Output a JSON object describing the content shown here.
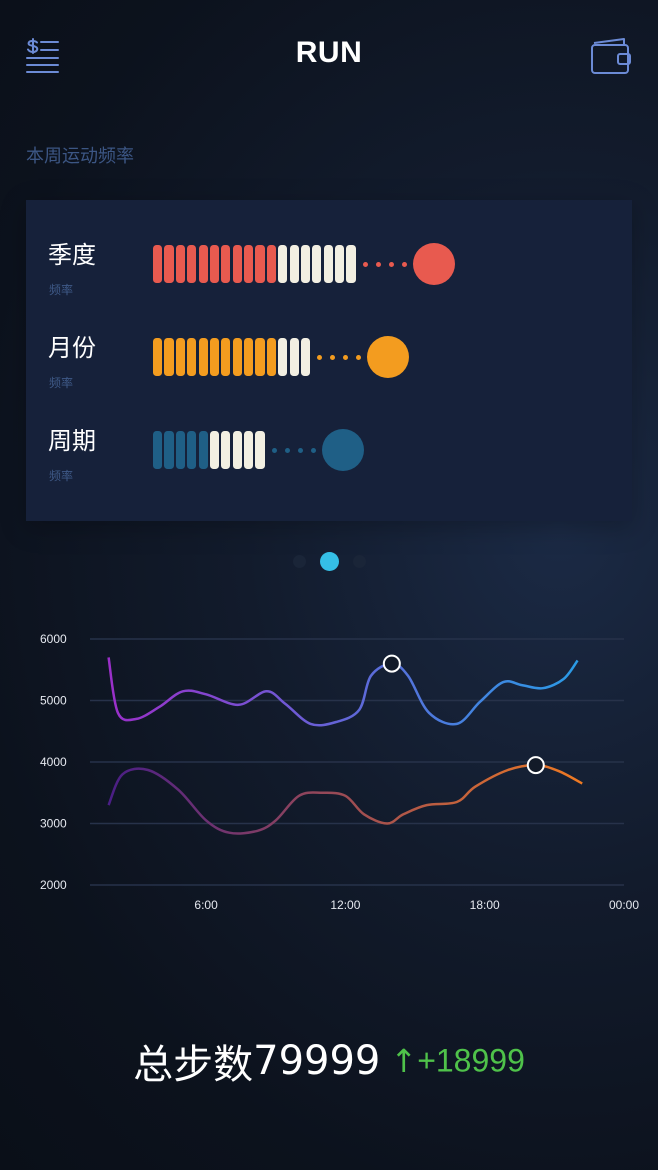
{
  "header": {
    "title": "RUN",
    "menu_icon": "dollar-list-icon",
    "wallet_icon": "wallet-icon"
  },
  "section_title": "本周运动频率",
  "frequency": [
    {
      "label": "季度",
      "sub": "频率",
      "filled": 11,
      "total": 18,
      "color": "#e85a4f",
      "empty_color": "#f2efe2"
    },
    {
      "label": "月份",
      "sub": "频率",
      "filled": 11,
      "total": 14,
      "color": "#f39c1f",
      "empty_color": "#f2efe2"
    },
    {
      "label": "周期",
      "sub": "频率",
      "filled": 5,
      "total": 10,
      "color": "#1f5f86",
      "empty_color": "#f2efe2"
    }
  ],
  "pager": {
    "count": 3,
    "active": 1
  },
  "chart_data": {
    "type": "line",
    "title": "",
    "xlabel": "",
    "ylabel": "",
    "x_ticks": [
      "6:00",
      "12:00",
      "18:00",
      "00:00"
    ],
    "y_ticks": [
      "6000",
      "5000",
      "4000",
      "3000",
      "2000"
    ],
    "ylim": [
      2000,
      6000
    ],
    "grid": true,
    "series": [
      {
        "gradient": [
          "#9b2fc9",
          "#2a9be6"
        ],
        "points": [
          [
            1.8,
            5700
          ],
          [
            2.2,
            4800
          ],
          [
            3.0,
            4700
          ],
          [
            4.0,
            4900
          ],
          [
            5.0,
            5150
          ],
          [
            6.0,
            5100
          ],
          [
            7.4,
            4930
          ],
          [
            8.6,
            5150
          ],
          [
            9.4,
            4950
          ],
          [
            10.5,
            4620
          ],
          [
            11.6,
            4650
          ],
          [
            12.6,
            4850
          ],
          [
            13.1,
            5400
          ],
          [
            14.0,
            5600
          ],
          [
            14.7,
            5400
          ],
          [
            15.6,
            4800
          ],
          [
            16.8,
            4620
          ],
          [
            17.8,
            4980
          ],
          [
            18.8,
            5300
          ],
          [
            19.6,
            5250
          ],
          [
            20.5,
            5200
          ],
          [
            21.4,
            5350
          ],
          [
            22.0,
            5650
          ]
        ],
        "highlight": [
          14.0,
          5600
        ]
      },
      {
        "gradient": [
          "#4a1e86",
          "#ef7a22"
        ],
        "points": [
          [
            1.8,
            3300
          ],
          [
            2.4,
            3800
          ],
          [
            3.5,
            3870
          ],
          [
            4.8,
            3550
          ],
          [
            6.0,
            3050
          ],
          [
            7.0,
            2850
          ],
          [
            8.2,
            2880
          ],
          [
            9.0,
            3050
          ],
          [
            10.0,
            3450
          ],
          [
            11.0,
            3500
          ],
          [
            12.0,
            3450
          ],
          [
            12.8,
            3150
          ],
          [
            13.8,
            3000
          ],
          [
            14.5,
            3150
          ],
          [
            15.5,
            3300
          ],
          [
            16.8,
            3350
          ],
          [
            17.6,
            3600
          ],
          [
            19.0,
            3870
          ],
          [
            20.2,
            3950
          ],
          [
            21.2,
            3850
          ],
          [
            22.2,
            3650
          ]
        ],
        "highlight": [
          20.2,
          3950
        ]
      }
    ]
  },
  "total": {
    "label": "总步数",
    "value": "79999",
    "arrow": "↑",
    "delta": "+18999"
  }
}
